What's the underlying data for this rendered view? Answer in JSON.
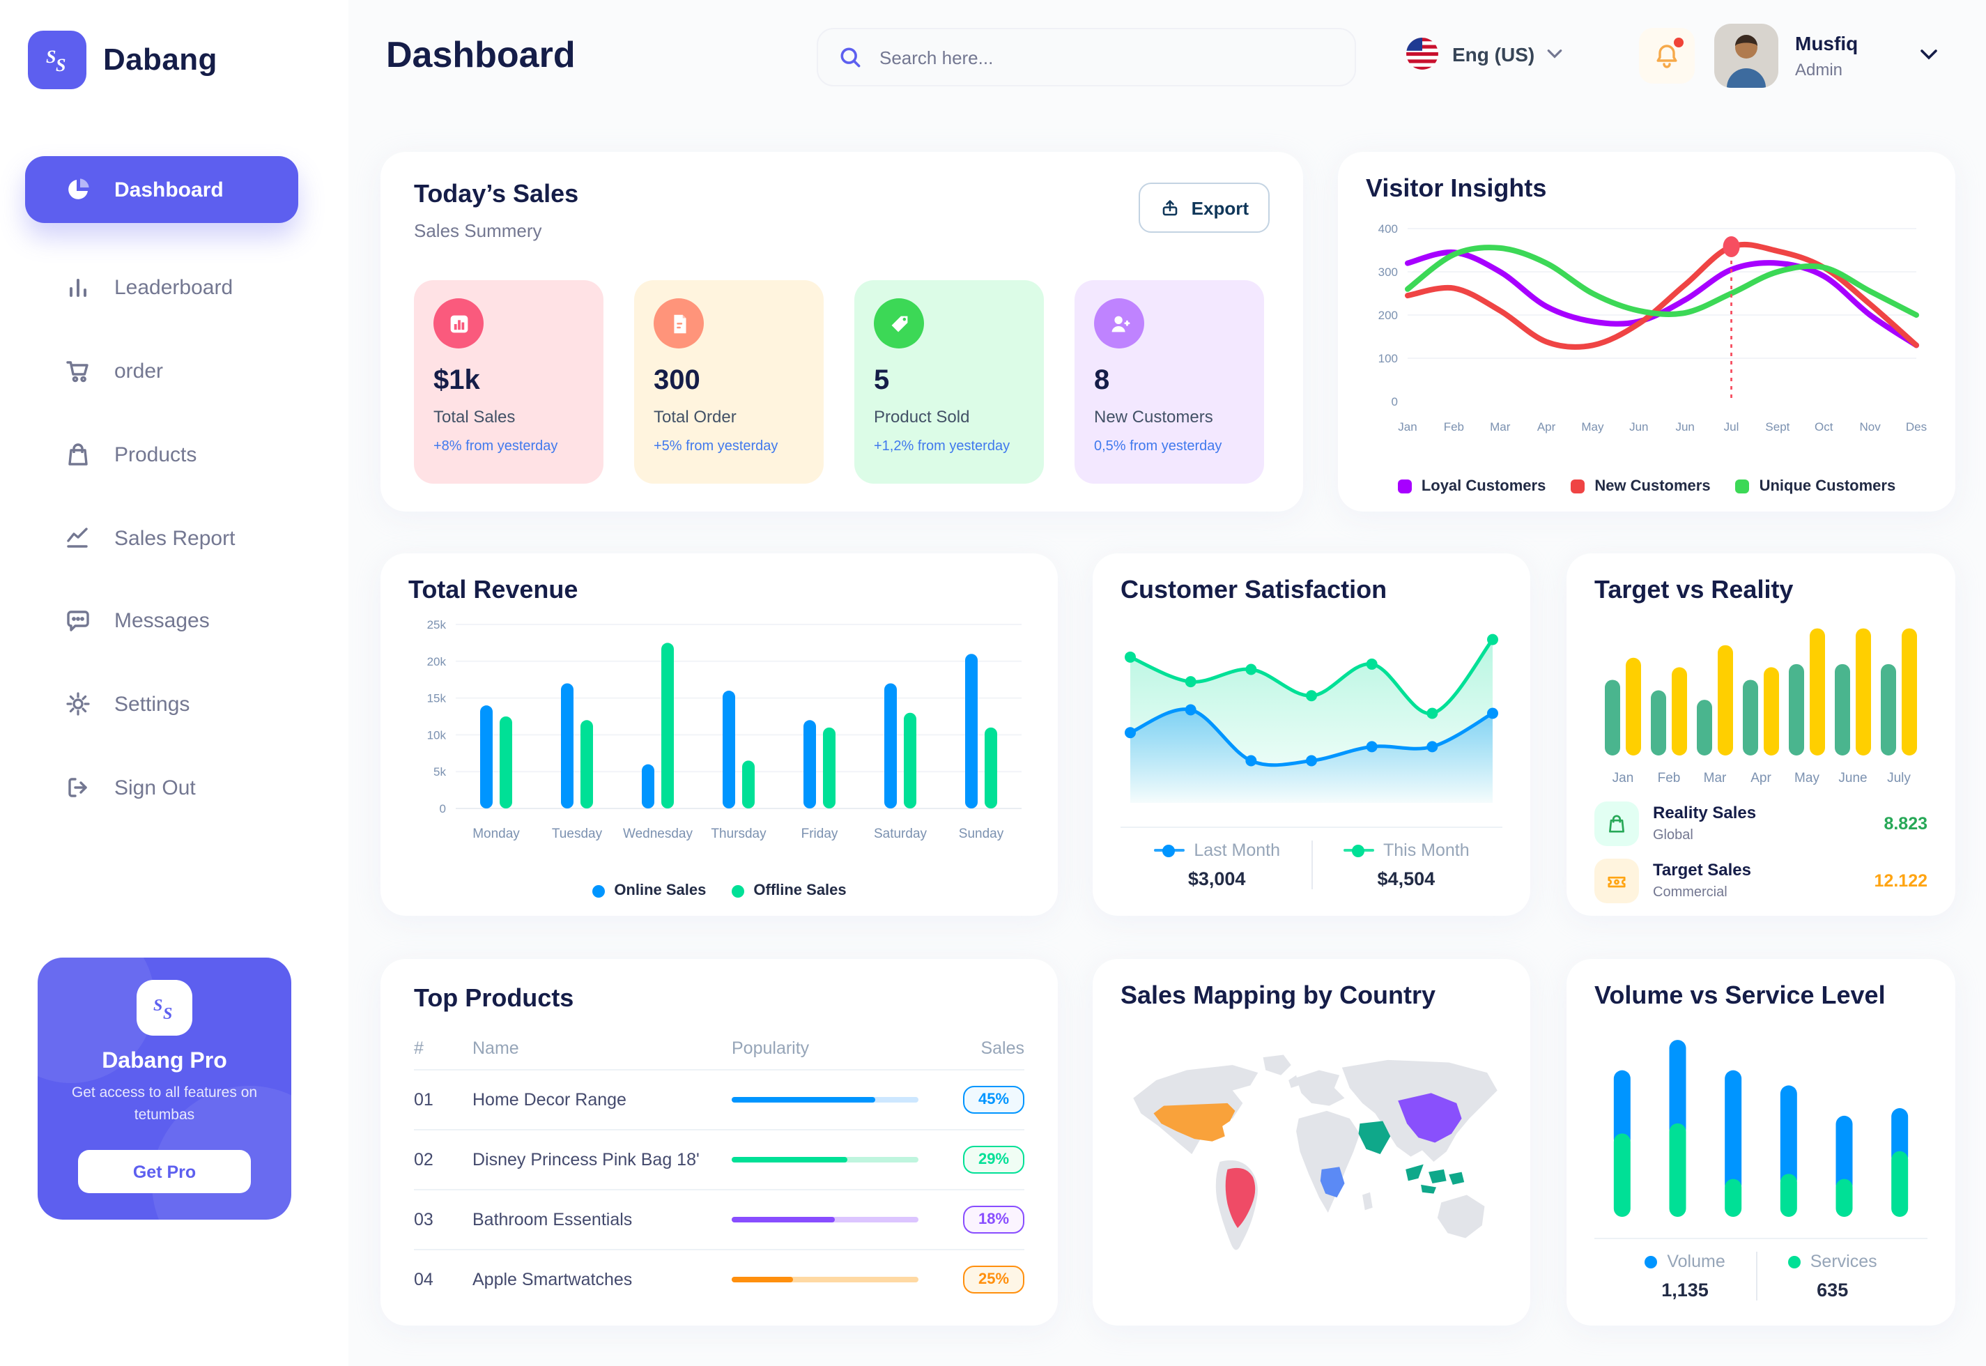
{
  "app": {
    "brand": "Dabang"
  },
  "header": {
    "title": "Dashboard",
    "search_placeholder": "Search here...",
    "language": "Eng (US)",
    "user": {
      "name": "Musfiq",
      "role": "Admin"
    }
  },
  "sidebar": {
    "items": [
      {
        "label": "Dashboard"
      },
      {
        "label": "Leaderboard"
      },
      {
        "label": "order"
      },
      {
        "label": "Products"
      },
      {
        "label": "Sales Report"
      },
      {
        "label": "Messages"
      },
      {
        "label": "Settings"
      },
      {
        "label": "Sign Out"
      }
    ],
    "pro_card": {
      "title": "Dabang Pro",
      "description": "Get access to all features on tetumbas",
      "button_label": "Get Pro"
    }
  },
  "today_sales": {
    "title": "Today’s Sales",
    "subtitle": "Sales Summery",
    "export_label": "Export",
    "stats": [
      {
        "value": "$1k",
        "label": "Total Sales",
        "delta": "+8% from yesterday",
        "bg": "#FFE2E5",
        "icon_bg": "#FA5A7D"
      },
      {
        "value": "300",
        "label": "Total Order",
        "delta": "+5% from yesterday",
        "bg": "#FFF4DE",
        "icon_bg": "#FF947A"
      },
      {
        "value": "5",
        "label": "Product Sold",
        "delta": "+1,2% from yesterday",
        "bg": "#DCFCE7",
        "icon_bg": "#3CD856"
      },
      {
        "value": "8",
        "label": "New Customers",
        "delta": "0,5% from yesterday",
        "bg": "#F3E8FF",
        "icon_bg": "#BF83FF"
      }
    ]
  },
  "panels": {
    "visitor_insights": {
      "title": "Visitor Insights"
    },
    "total_revenue": {
      "title": "Total Revenue"
    },
    "customer_satisfaction": {
      "title": "Customer Satisfaction",
      "legend": [
        {
          "label": "Last Month",
          "value": "$3,004",
          "color": "#0095FF"
        },
        {
          "label": "This Month",
          "value": "$4,504",
          "color": "#00E096"
        }
      ]
    },
    "target_vs_reality": {
      "title": "Target vs Reality",
      "legend": [
        {
          "label": "Reality Sales",
          "sublabel": "Global",
          "value": "8.823",
          "value_color": "#27A857",
          "icon_bg": "#E2FFF3",
          "icon_color": "#27A857"
        },
        {
          "label": "Target Sales",
          "sublabel": "Commercial",
          "value": "12.122",
          "value_color": "#FFA412",
          "icon_bg": "#FFF4DE",
          "icon_color": "#FFA412"
        }
      ]
    },
    "top_products": {
      "title": "Top Products",
      "columns": [
        "#",
        "Name",
        "Popularity",
        "Sales"
      ],
      "rows": [
        {
          "num": "01",
          "name": "Home Decor Range",
          "popularity_fill": 0.77,
          "sales": "45%",
          "color": "#0095FF",
          "track": "#CDE7FF",
          "badge_bg": "#F0F9FF"
        },
        {
          "num": "02",
          "name": "Disney Princess Pink Bag 18'",
          "popularity_fill": 0.62,
          "sales": "29%",
          "color": "#00E096",
          "track": "#BFF5DE",
          "badge_bg": "#F0FDF4"
        },
        {
          "num": "03",
          "name": "Bathroom Essentials",
          "popularity_fill": 0.55,
          "sales": "18%",
          "color": "#884DFF",
          "track": "#DCC5FF",
          "badge_bg": "#FBF4FF"
        },
        {
          "num": "04",
          "name": "Apple Smartwatches",
          "popularity_fill": 0.33,
          "sales": "25%",
          "color": "#FF8F0D",
          "track": "#FFD9A3",
          "badge_bg": "#FEF6E6"
        }
      ]
    },
    "sales_mapping": {
      "title": "Sales Mapping by Country",
      "countries": [
        {
          "name": "United States",
          "color": "#F9A23B"
        },
        {
          "name": "Brazil",
          "color": "#EF4B66"
        },
        {
          "name": "DR Congo",
          "color": "#5B8AF5"
        },
        {
          "name": "Saudi Arabia",
          "color": "#0FA88A"
        },
        {
          "name": "China",
          "color": "#8950FC"
        },
        {
          "name": "Indonesia",
          "color": "#0FA88A"
        }
      ]
    },
    "volume_vs_service": {
      "title": "Volume vs Service Level",
      "legend": [
        {
          "label": "Volume",
          "value": "1,135",
          "color": "#0095FF"
        },
        {
          "label": "Services",
          "value": "635",
          "color": "#00E096"
        }
      ]
    }
  },
  "chart_data": [
    {
      "id": "visitor-insights",
      "type": "line",
      "title": "Visitor Insights",
      "x": [
        "Jan",
        "Feb",
        "Mar",
        "Apr",
        "May",
        "Jun",
        "Jun",
        "Jul",
        "Sept",
        "Oct",
        "Nov",
        "Des"
      ],
      "ylim": [
        0,
        400
      ],
      "yticks": [
        0,
        100,
        200,
        300,
        400
      ],
      "grid": true,
      "legend_position": "bottom",
      "series": [
        {
          "name": "Loyal Customers",
          "color": "#A700FF",
          "values": [
            320,
            345,
            300,
            220,
            185,
            185,
            235,
            305,
            320,
            290,
            200,
            130
          ]
        },
        {
          "name": "New Customers",
          "color": "#EF4444",
          "values": [
            245,
            262,
            210,
            138,
            130,
            180,
            270,
            358,
            348,
            310,
            225,
            130
          ]
        },
        {
          "name": "Unique Customers",
          "color": "#3CD856",
          "values": [
            260,
            340,
            355,
            320,
            250,
            210,
            205,
            250,
            300,
            310,
            255,
            200
          ]
        }
      ],
      "annotation": {
        "vline_x_index": 7,
        "marker_series": "New Customers",
        "color": "#F64E60"
      }
    },
    {
      "id": "total-revenue",
      "type": "bar",
      "title": "Total Revenue",
      "categories": [
        "Monday",
        "Tuesday",
        "Wednesday",
        "Thursday",
        "Friday",
        "Saturday",
        "Sunday"
      ],
      "ylim": [
        0,
        25
      ],
      "yticks": [
        0,
        5,
        10,
        15,
        20,
        25
      ],
      "ytick_labels": [
        "0",
        "5k",
        "10k",
        "15k",
        "20k",
        "25k"
      ],
      "unit": "k",
      "grid": true,
      "legend_position": "bottom",
      "series": [
        {
          "name": "Online Sales",
          "color": "#0095FF",
          "values": [
            14,
            17,
            6,
            16,
            12,
            17,
            21
          ]
        },
        {
          "name": "Offline Sales",
          "color": "#00E096",
          "values": [
            12.5,
            12,
            22.5,
            6.5,
            11,
            13,
            11
          ]
        }
      ]
    },
    {
      "id": "customer-satisfaction",
      "type": "area",
      "title": "Customer Satisfaction",
      "x": [
        1,
        2,
        3,
        4,
        5,
        6,
        7
      ],
      "ylim": [
        0,
        100
      ],
      "series": [
        {
          "name": "Last Month",
          "color": "#0095FF",
          "values": [
            40,
            53,
            24,
            24,
            32,
            32,
            51
          ],
          "total": "$3,004"
        },
        {
          "name": "This Month",
          "color": "#00E096",
          "values": [
            83,
            69,
            76,
            61,
            79,
            51,
            93
          ],
          "total": "$4,504"
        }
      ]
    },
    {
      "id": "target-vs-reality",
      "type": "bar",
      "title": "Target vs Reality",
      "categories": [
        "Jan",
        "Feb",
        "Mar",
        "Apr",
        "May",
        "June",
        "July"
      ],
      "ylim": [
        0,
        13
      ],
      "series": [
        {
          "name": "Reality Sales",
          "color": "#4AB58E",
          "values": [
            7.2,
            6.2,
            5.3,
            7.2,
            8.7,
            8.7,
            8.7
          ]
        },
        {
          "name": "Target Sales",
          "color": "#FFCF00",
          "values": [
            9.3,
            8.4,
            10.5,
            8.4,
            12.1,
            12.1,
            12.1
          ]
        }
      ]
    },
    {
      "id": "volume-vs-service",
      "type": "stacked-bar",
      "title": "Volume vs Service Level",
      "categories": [
        "1",
        "2",
        "3",
        "4",
        "5",
        "6"
      ],
      "ylim": [
        0,
        75
      ],
      "series": [
        {
          "name": "Services",
          "color": "#00E096",
          "values": [
            33,
            37,
            15,
            17,
            15,
            26
          ],
          "total": "635"
        },
        {
          "name": "Volume",
          "color": "#0095FF",
          "values": [
            25,
            33,
            43,
            35,
            25,
            17
          ],
          "total": "1,135"
        }
      ]
    }
  ]
}
